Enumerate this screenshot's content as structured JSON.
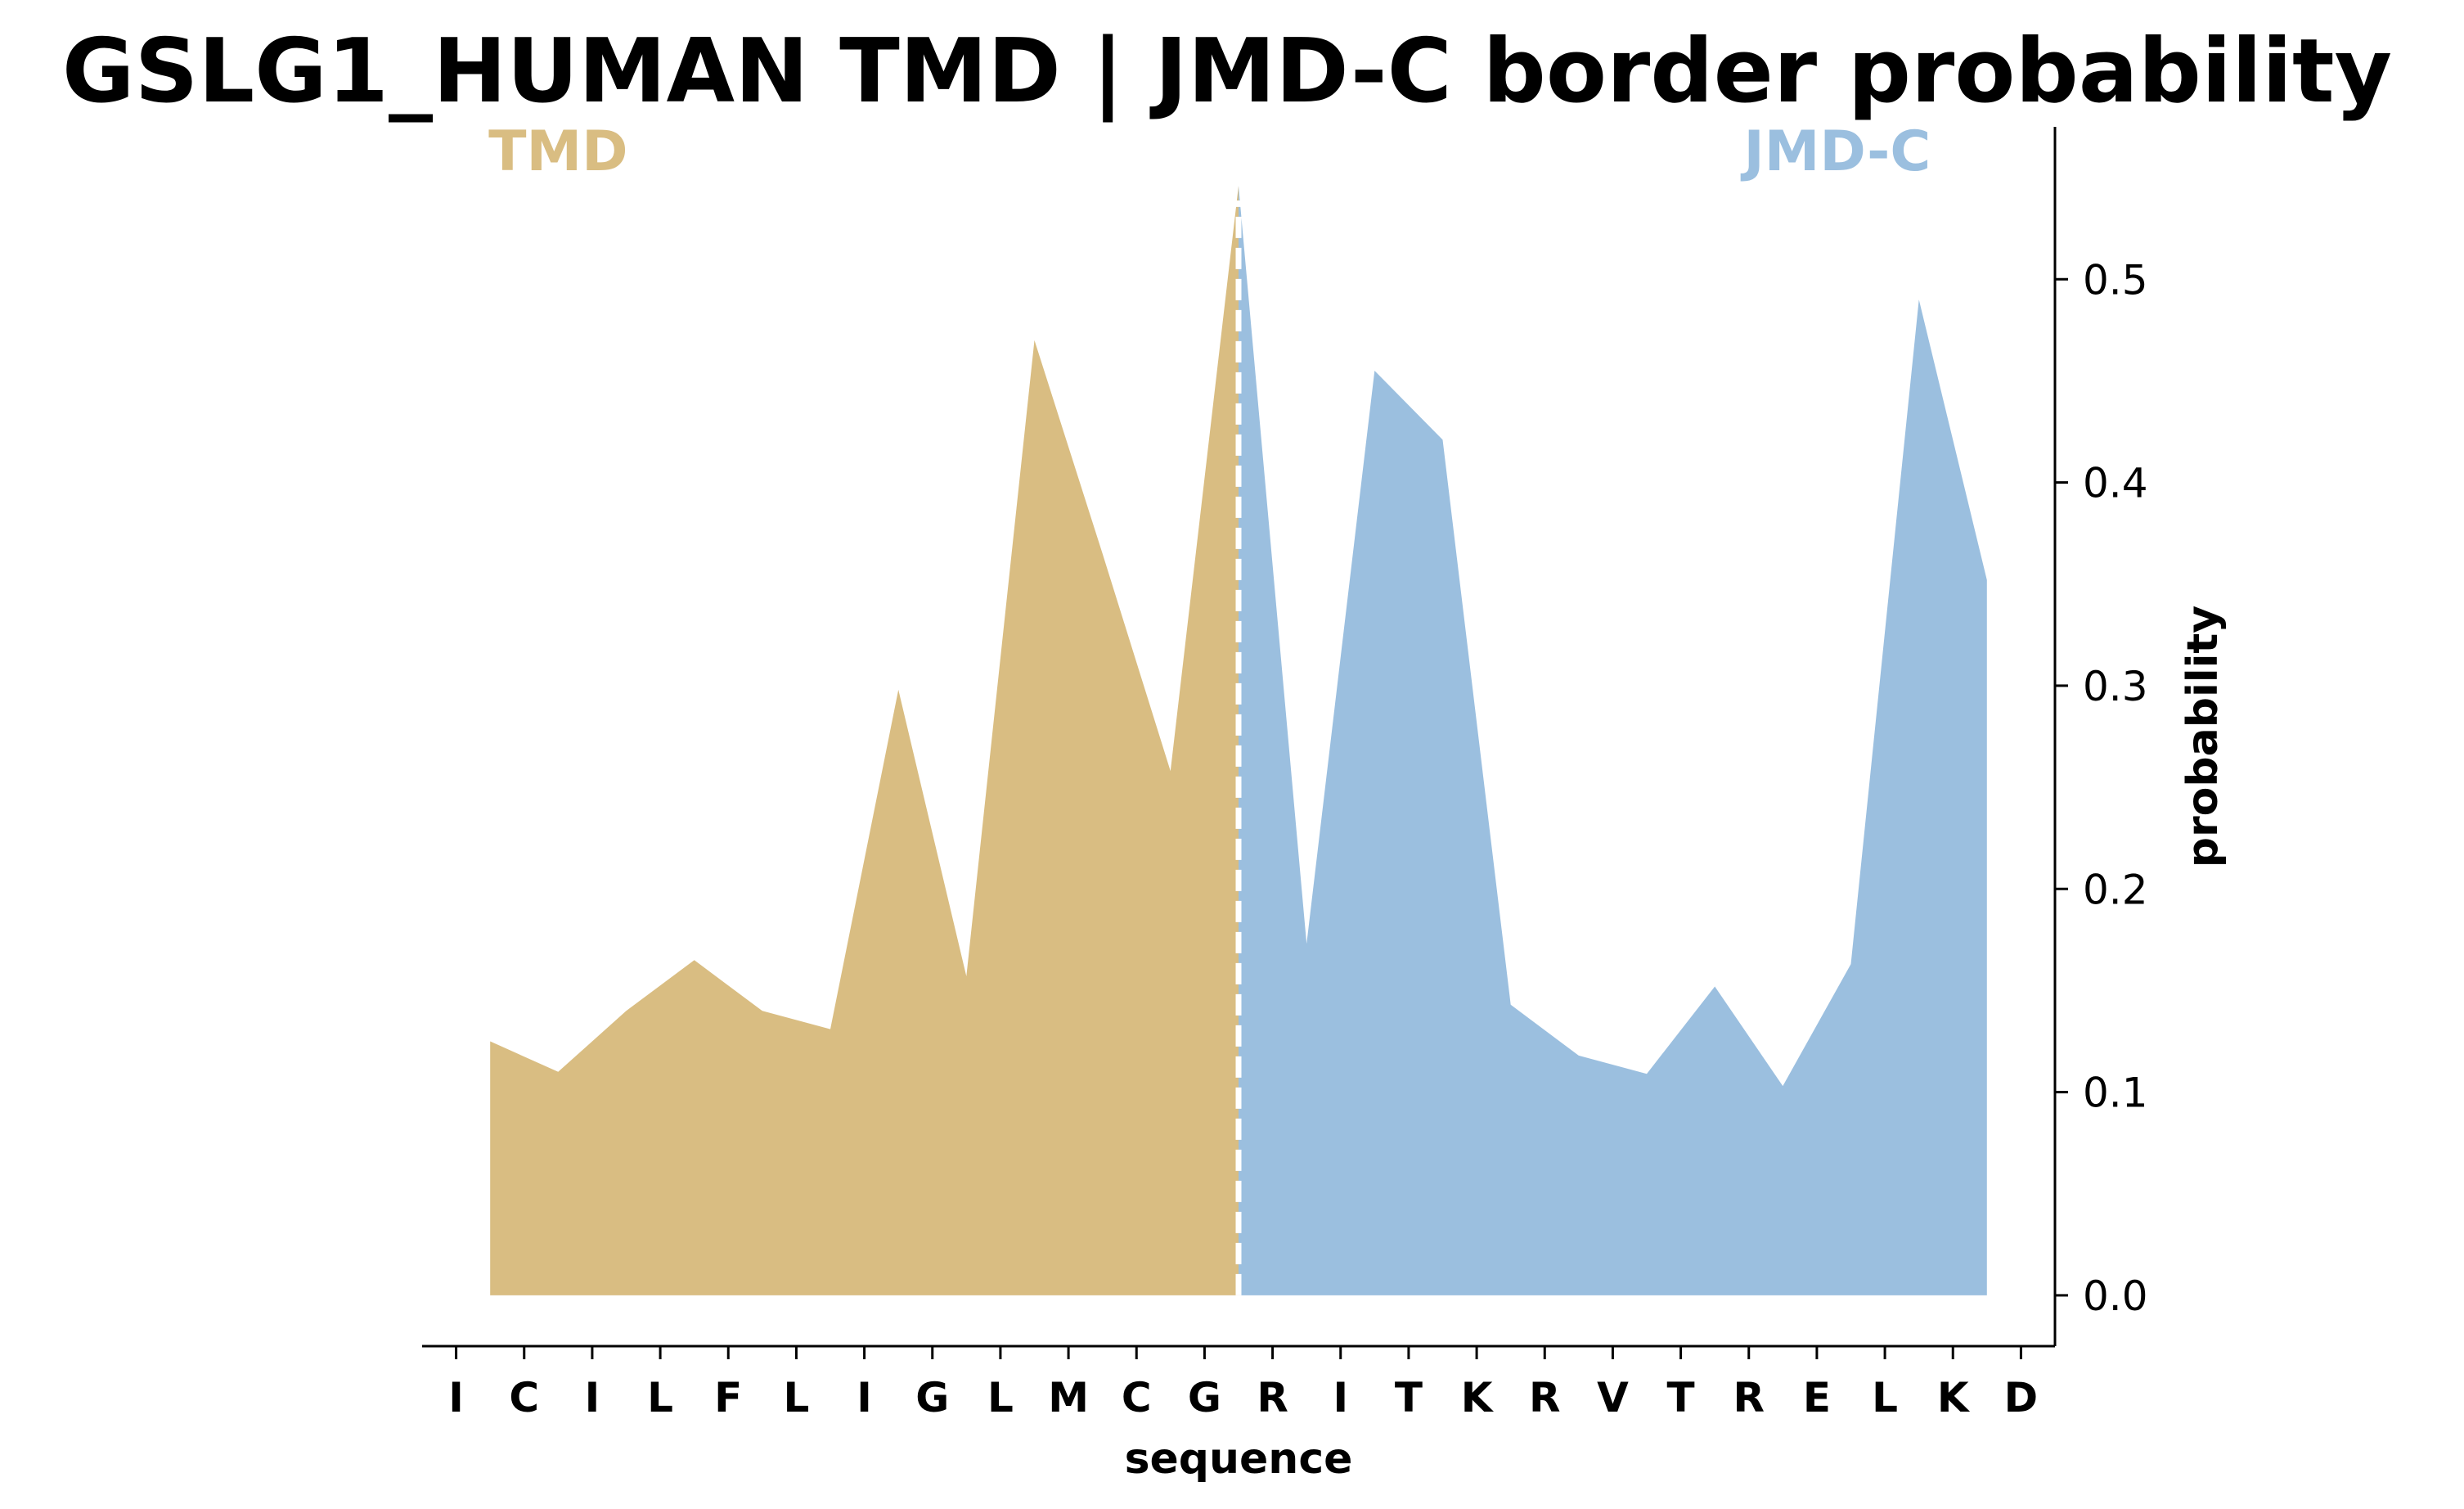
{
  "chart_data": {
    "type": "area",
    "title": "GSLG1_HUMAN TMD | JMD-C border probability",
    "xlabel": "sequence",
    "ylabel": "probability",
    "y_axis_side": "right",
    "ylim": [
      -0.025,
      0.575
    ],
    "yticks": [
      "0.0",
      "0.1",
      "0.2",
      "0.3",
      "0.4",
      "0.5"
    ],
    "grid": false,
    "legend": "none",
    "sequence": [
      "I",
      "C",
      "I",
      "L",
      "F",
      "L",
      "I",
      "G",
      "L",
      "M",
      "C",
      "G",
      "R",
      "I",
      "T",
      "K",
      "R",
      "V",
      "T",
      "R",
      "E",
      "L",
      "K",
      "D"
    ],
    "border_position": 11.5,
    "regions": [
      {
        "name": "TMD",
        "color": "#d9bd82",
        "label_color": "#d9bd82"
      },
      {
        "name": "JMD-C",
        "color": "#9bbfdf",
        "label_color": "#9bbfdf"
      }
    ],
    "x": [
      0.5,
      1.5,
      2.5,
      3.5,
      4.5,
      5.5,
      6.5,
      7.5,
      8.5,
      9.5,
      10.5,
      11.5,
      12.5,
      13.5,
      14.5,
      15.5,
      16.5,
      17.5,
      18.5,
      19.5,
      20.5,
      21.5,
      22.5
    ],
    "values": [
      0.125,
      0.11,
      0.14,
      0.165,
      0.14,
      0.131,
      0.298,
      0.157,
      0.47,
      0.365,
      0.258,
      0.546,
      0.173,
      0.455,
      0.421,
      0.143,
      0.118,
      0.109,
      0.152,
      0.103,
      0.163,
      0.49,
      0.352
    ],
    "border_line_color": "#ffffff"
  }
}
